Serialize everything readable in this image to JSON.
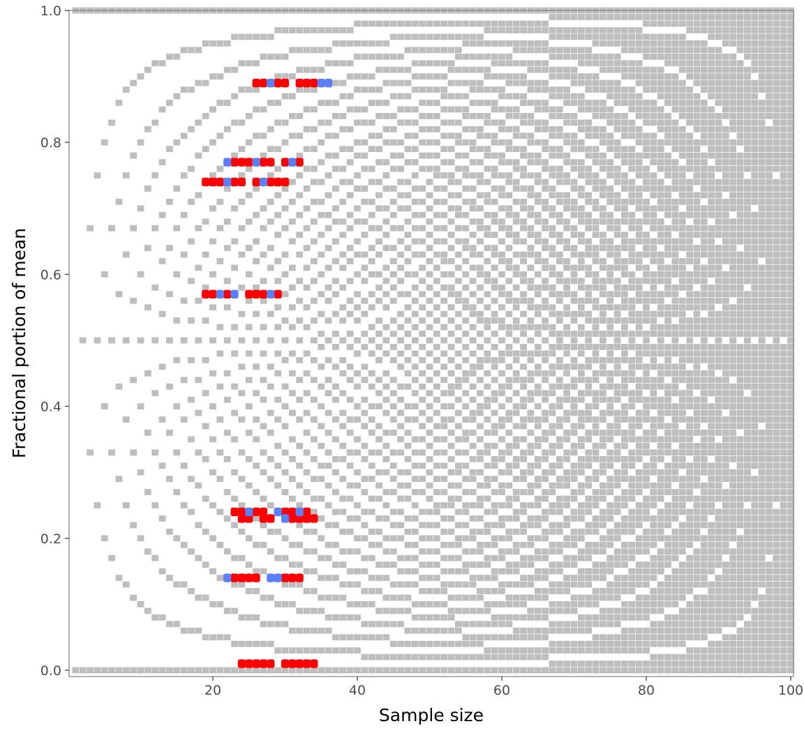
{
  "chart_data": {
    "type": "heatmap",
    "title": "",
    "xlabel": "Sample size",
    "ylabel": "Fractional portion of mean",
    "xlim": [
      1,
      100
    ],
    "ylim": [
      0,
      1
    ],
    "x_ticks": [
      20,
      40,
      60,
      80,
      100
    ],
    "y_ticks": [
      0.0,
      0.2,
      0.4,
      0.6,
      0.8,
      1.0
    ],
    "x_tick_labels": [
      "20",
      "40",
      "60",
      "80",
      "100"
    ],
    "y_tick_labels": [
      "0.0",
      "0.2",
      "0.4",
      "0.6",
      "0.8",
      "1.0"
    ],
    "grid": false,
    "legend": "none",
    "background_layer": {
      "description_rule": "grey tile at (n, y) when y equals k/n for some integer k, y resolution 0.01",
      "n_range": [
        1,
        100
      ],
      "y_resolution": 0.01,
      "color": "#bebebe"
    },
    "highlight_series": [
      {
        "color": "#ff0000",
        "points": [
          {
            "y": 0.89,
            "x": [
              26,
              27,
              29,
              30,
              32,
              33,
              34
            ]
          },
          {
            "y": 0.77,
            "x": [
              23,
              24,
              25,
              27,
              28,
              30,
              32
            ]
          },
          {
            "y": 0.74,
            "x": [
              19,
              20,
              21,
              23,
              24,
              26,
              28,
              29,
              30
            ]
          },
          {
            "y": 0.57,
            "x": [
              19,
              20,
              22,
              25,
              26,
              27,
              29
            ]
          },
          {
            "y": 0.24,
            "x": [
              23,
              24,
              26,
              27,
              30,
              31,
              33
            ]
          },
          {
            "y": 0.23,
            "x": [
              24,
              25,
              27,
              28,
              31,
              32,
              33,
              34
            ]
          },
          {
            "y": 0.14,
            "x": [
              23,
              24,
              25,
              26,
              30,
              31,
              32
            ]
          },
          {
            "y": 0.01,
            "x": [
              24,
              25,
              26,
              27,
              28,
              30,
              31,
              32,
              33,
              34
            ]
          }
        ]
      },
      {
        "color": "#5b7ff8",
        "points": [
          {
            "y": 0.89,
            "x": [
              28,
              35,
              36
            ]
          },
          {
            "y": 0.77,
            "x": [
              22,
              26,
              31
            ]
          },
          {
            "y": 0.74,
            "x": [
              22,
              27
            ]
          },
          {
            "y": 0.57,
            "x": [
              21,
              23,
              28
            ]
          },
          {
            "y": 0.24,
            "x": [
              25,
              29,
              32
            ]
          },
          {
            "y": 0.23,
            "x": [
              30
            ]
          },
          {
            "y": 0.14,
            "x": [
              22,
              28,
              29
            ]
          }
        ]
      }
    ],
    "colors": {
      "background_tile": "#bebebe",
      "panel_border": "#7f7f7f",
      "tick": "#333333"
    }
  }
}
